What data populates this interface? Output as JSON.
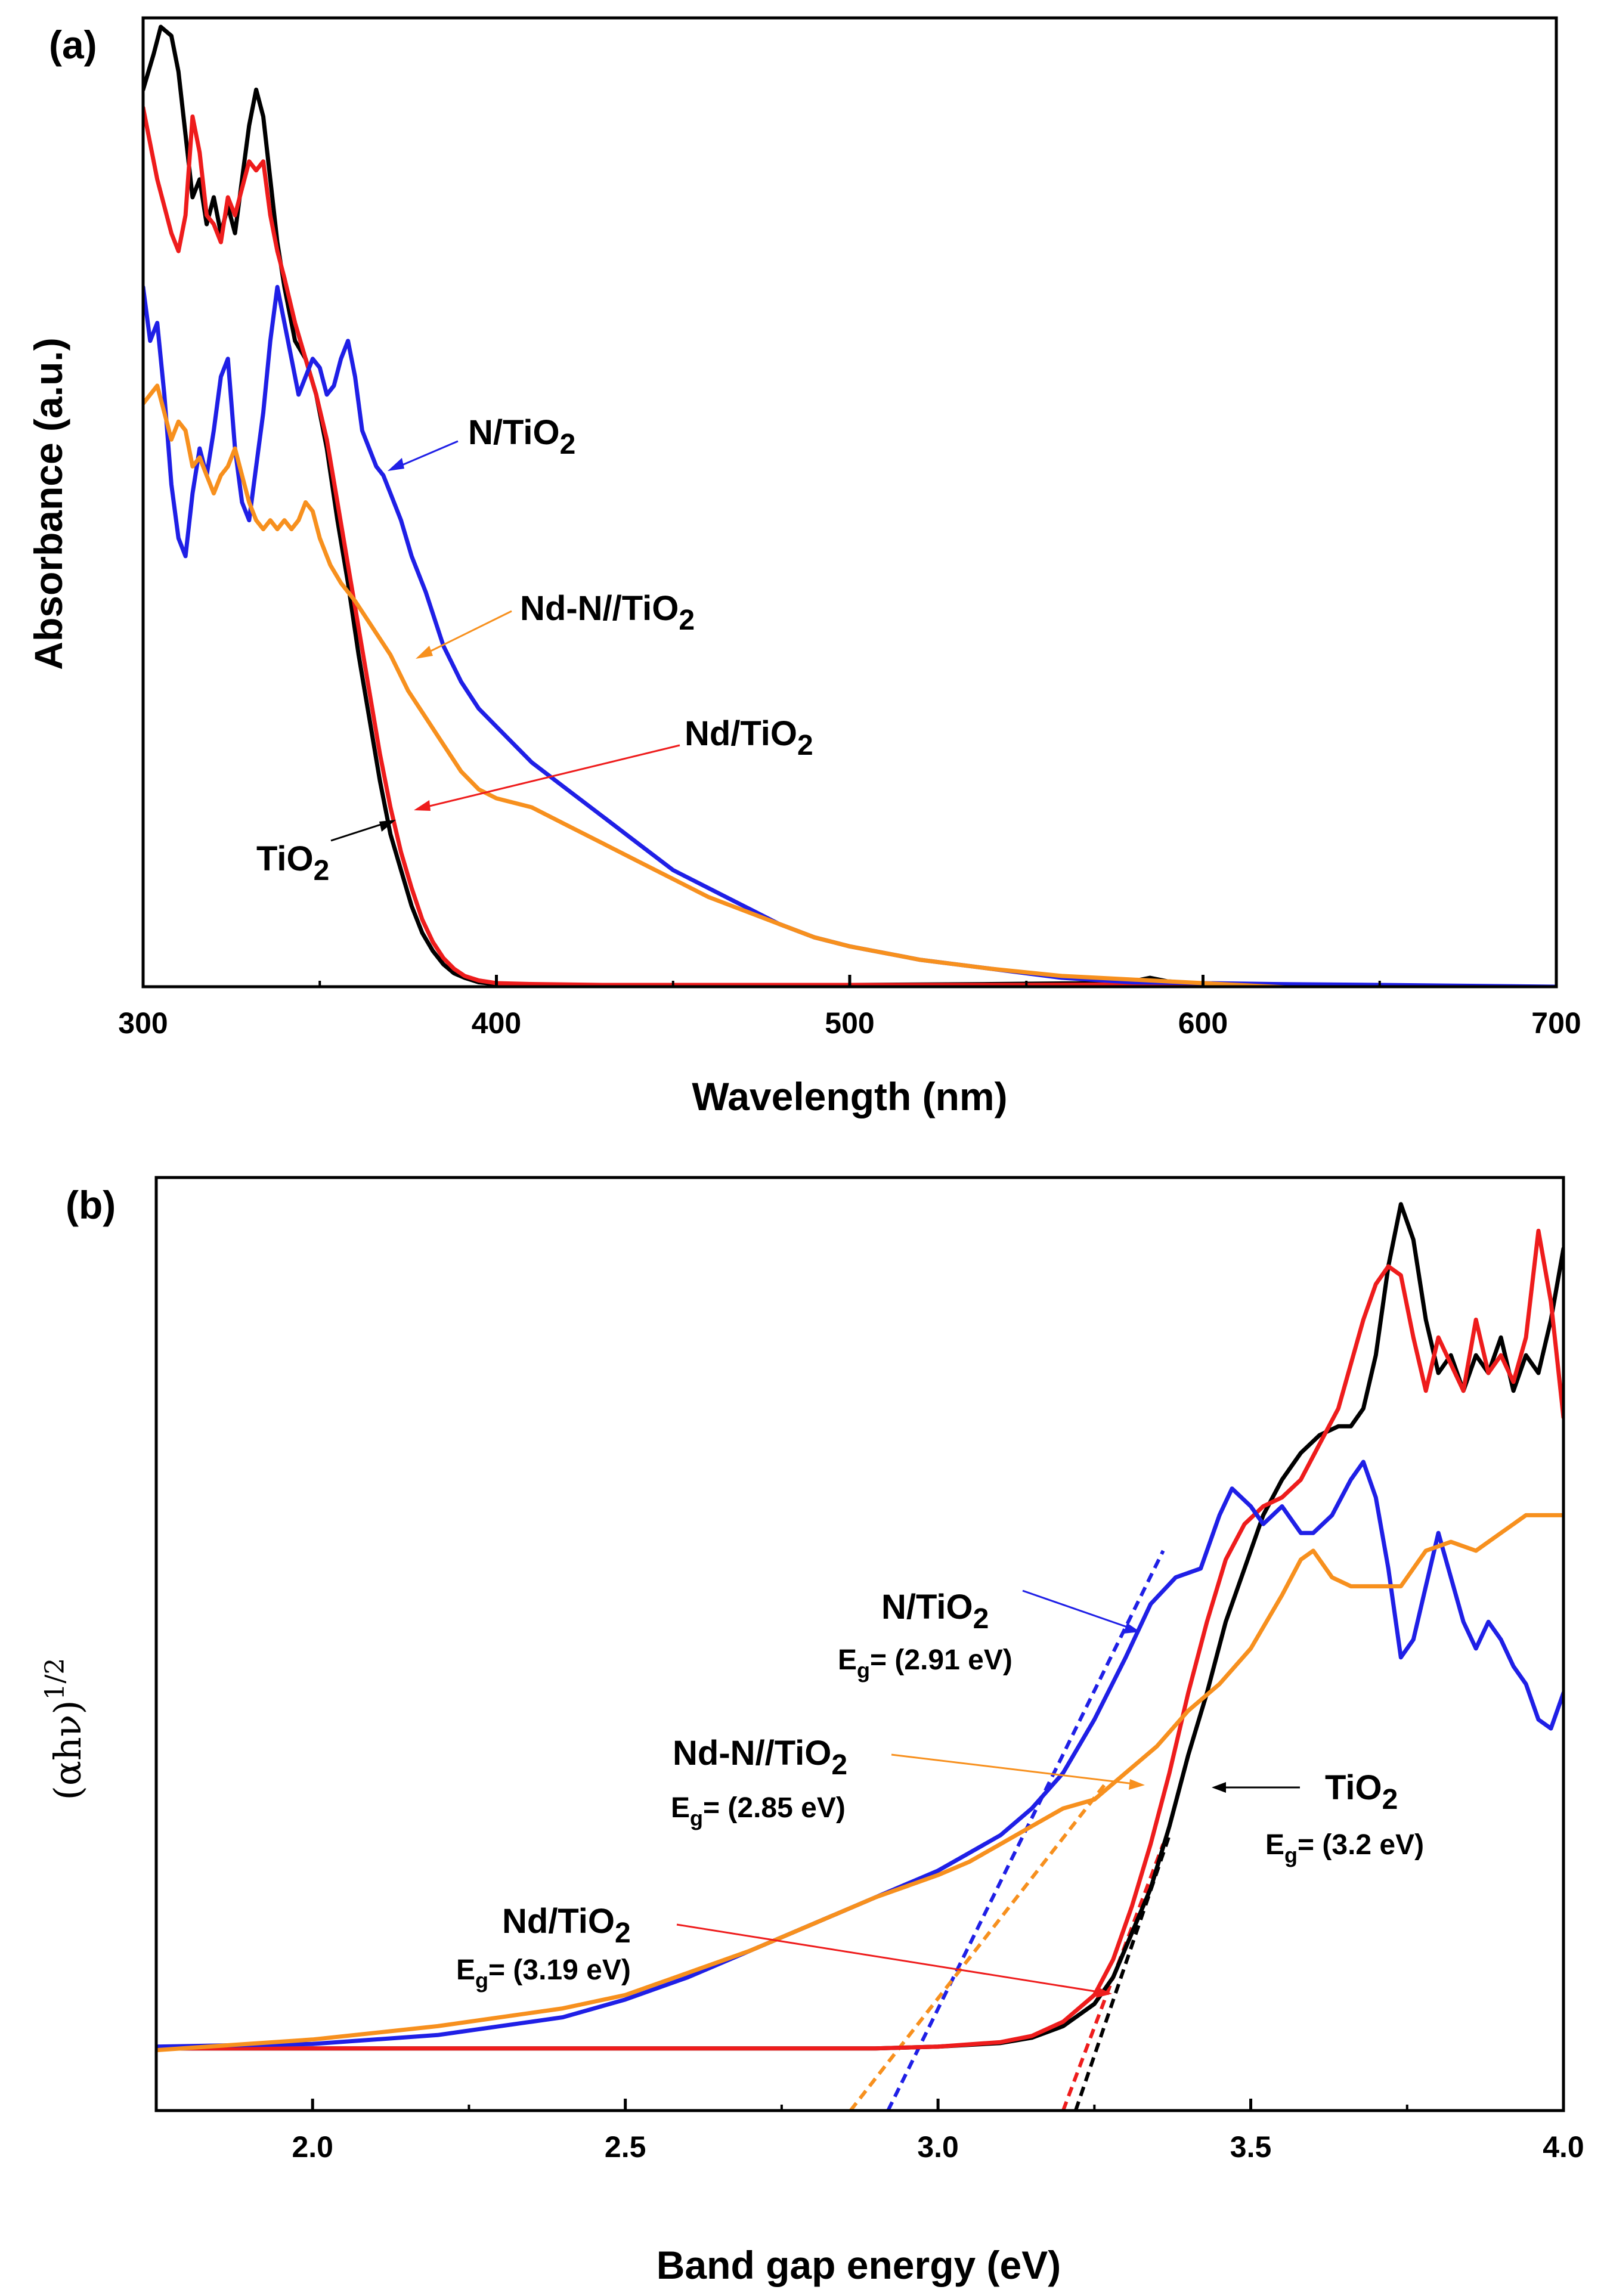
{
  "chart_data": [
    {
      "type": "line",
      "panel_label": "(a)",
      "xlabel": "Wavelength (nm)",
      "ylabel": "Absorbance (a.u.)",
      "xlim": [
        300,
        700
      ],
      "ylim": [
        0,
        1.08
      ],
      "xticks": [
        300,
        400,
        500,
        600,
        700
      ],
      "series": [
        {
          "name": "TiO2",
          "color": "#000000",
          "x": [
            300,
            303,
            305,
            308,
            310,
            312,
            314,
            316,
            318,
            320,
            322,
            324,
            326,
            328,
            330,
            332,
            334,
            336,
            338,
            340,
            343,
            346,
            349,
            352,
            355,
            358,
            361,
            364,
            367,
            370,
            373,
            376,
            379,
            382,
            385,
            388,
            391,
            395,
            400,
            410,
            430,
            460,
            500,
            540,
            570,
            580,
            585,
            590,
            600,
            620,
            650,
            700
          ],
          "y": [
            1.0,
            1.04,
            1.07,
            1.06,
            1.02,
            0.95,
            0.88,
            0.9,
            0.85,
            0.88,
            0.84,
            0.87,
            0.84,
            0.9,
            0.96,
            1.0,
            0.97,
            0.9,
            0.83,
            0.78,
            0.72,
            0.7,
            0.66,
            0.6,
            0.52,
            0.45,
            0.37,
            0.3,
            0.23,
            0.17,
            0.13,
            0.09,
            0.06,
            0.04,
            0.025,
            0.015,
            0.01,
            0.005,
            0.003,
            0.002,
            0.002,
            0.002,
            0.002,
            0.003,
            0.004,
            0.006,
            0.01,
            0.006,
            0.003,
            0.0,
            -0.005,
            -0.01
          ]
        },
        {
          "name": "Nd/TiO2",
          "color": "#ee1c1c",
          "x": [
            300,
            302,
            304,
            306,
            308,
            310,
            312,
            314,
            316,
            318,
            320,
            322,
            324,
            326,
            328,
            330,
            332,
            334,
            336,
            338,
            340,
            343,
            346,
            349,
            352,
            355,
            358,
            361,
            364,
            367,
            370,
            373,
            376,
            379,
            382,
            385,
            388,
            391,
            395,
            400,
            410,
            430,
            460,
            500,
            550,
            600,
            650,
            700
          ],
          "y": [
            0.98,
            0.94,
            0.9,
            0.87,
            0.84,
            0.82,
            0.86,
            0.97,
            0.93,
            0.86,
            0.85,
            0.83,
            0.88,
            0.86,
            0.89,
            0.92,
            0.91,
            0.92,
            0.86,
            0.82,
            0.79,
            0.74,
            0.7,
            0.66,
            0.61,
            0.54,
            0.47,
            0.4,
            0.33,
            0.26,
            0.2,
            0.15,
            0.11,
            0.075,
            0.05,
            0.032,
            0.02,
            0.012,
            0.007,
            0.004,
            0.003,
            0.002,
            0.002,
            0.002,
            0.002,
            0.003,
            0.0,
            -0.01
          ]
        },
        {
          "name": "N/TiO2",
          "color": "#1f1fe6",
          "x": [
            300,
            302,
            304,
            306,
            308,
            310,
            312,
            314,
            316,
            318,
            320,
            322,
            324,
            326,
            328,
            330,
            332,
            334,
            336,
            338,
            340,
            342,
            344,
            346,
            348,
            350,
            352,
            354,
            356,
            358,
            360,
            362,
            364,
            366,
            368,
            370,
            373,
            376,
            380,
            385,
            390,
            395,
            400,
            410,
            420,
            430,
            440,
            450,
            460,
            470,
            480,
            490,
            500,
            520,
            540,
            560,
            580,
            600,
            620,
            650,
            700
          ],
          "y": [
            0.78,
            0.72,
            0.74,
            0.66,
            0.56,
            0.5,
            0.48,
            0.55,
            0.6,
            0.57,
            0.62,
            0.68,
            0.7,
            0.6,
            0.54,
            0.52,
            0.58,
            0.64,
            0.72,
            0.78,
            0.74,
            0.7,
            0.66,
            0.68,
            0.7,
            0.69,
            0.66,
            0.67,
            0.7,
            0.72,
            0.68,
            0.62,
            0.6,
            0.58,
            0.57,
            0.55,
            0.52,
            0.48,
            0.44,
            0.38,
            0.34,
            0.31,
            0.29,
            0.25,
            0.22,
            0.19,
            0.16,
            0.13,
            0.11,
            0.09,
            0.07,
            0.055,
            0.045,
            0.03,
            0.02,
            0.01,
            0.005,
            0.004,
            0.003,
            0.002,
            0.0
          ]
        },
        {
          "name": "Nd-N//TiO2",
          "color": "#f7901e",
          "x": [
            300,
            304,
            306,
            308,
            310,
            312,
            314,
            316,
            318,
            320,
            322,
            324,
            326,
            328,
            330,
            332,
            334,
            336,
            338,
            340,
            342,
            344,
            346,
            348,
            350,
            353,
            356,
            360,
            365,
            370,
            375,
            380,
            385,
            390,
            395,
            400,
            410,
            420,
            430,
            440,
            450,
            460,
            470,
            480,
            490,
            500,
            520,
            540,
            560,
            580,
            600,
            630,
            660,
            700
          ],
          "y": [
            0.65,
            0.67,
            0.64,
            0.61,
            0.63,
            0.62,
            0.58,
            0.59,
            0.57,
            0.55,
            0.57,
            0.58,
            0.6,
            0.57,
            0.54,
            0.52,
            0.51,
            0.52,
            0.51,
            0.52,
            0.51,
            0.52,
            0.54,
            0.53,
            0.5,
            0.47,
            0.45,
            0.43,
            0.4,
            0.37,
            0.33,
            0.3,
            0.27,
            0.24,
            0.22,
            0.21,
            0.2,
            0.18,
            0.16,
            0.14,
            0.12,
            0.1,
            0.085,
            0.07,
            0.055,
            0.045,
            0.03,
            0.02,
            0.012,
            0.008,
            0.004,
            -0.002,
            -0.006,
            -0.012
          ]
        }
      ],
      "annotations": [
        {
          "text": "N/TiO",
          "sub": "2",
          "color": "#1f1fe6"
        },
        {
          "text": "Nd-N//TiO",
          "sub": "2",
          "color": "#f7901e"
        },
        {
          "text": "Nd/TiO",
          "sub": "2",
          "color": "#ee1c1c"
        },
        {
          "text": "TiO",
          "sub": "2",
          "color": "#000000"
        }
      ]
    },
    {
      "type": "line",
      "panel_label": "(b)",
      "xlabel": "Band gap energy (eV)",
      "ylabel": "(αhν)",
      "ylabel_sup": "1/2",
      "xlim": [
        1.75,
        4.0
      ],
      "ylim": [
        -0.05,
        1.0
      ],
      "xticks": [
        2.0,
        2.5,
        3.0,
        3.5,
        4.0
      ],
      "xtick_labels": [
        "2.0",
        "2.5",
        "3.0",
        "3.5",
        "4.0"
      ],
      "series": [
        {
          "name": "TiO2",
          "color": "#000000",
          "x": [
            1.75,
            2.0,
            2.5,
            2.9,
            3.0,
            3.1,
            3.15,
            3.2,
            3.25,
            3.28,
            3.31,
            3.34,
            3.37,
            3.4,
            3.43,
            3.46,
            3.49,
            3.52,
            3.55,
            3.58,
            3.61,
            3.64,
            3.66,
            3.68,
            3.7,
            3.72,
            3.74,
            3.76,
            3.78,
            3.8,
            3.82,
            3.84,
            3.86,
            3.88,
            3.9,
            3.92,
            3.94,
            3.96,
            3.98,
            4.0
          ],
          "y": [
            0.02,
            0.02,
            0.02,
            0.02,
            0.022,
            0.026,
            0.032,
            0.045,
            0.07,
            0.1,
            0.15,
            0.2,
            0.27,
            0.35,
            0.42,
            0.5,
            0.56,
            0.62,
            0.66,
            0.69,
            0.71,
            0.72,
            0.72,
            0.74,
            0.8,
            0.9,
            0.97,
            0.93,
            0.84,
            0.78,
            0.8,
            0.76,
            0.8,
            0.78,
            0.82,
            0.76,
            0.8,
            0.78,
            0.84,
            0.92
          ]
        },
        {
          "name": "Nd/TiO2",
          "color": "#ee1c1c",
          "x": [
            1.75,
            2.0,
            2.5,
            2.9,
            3.0,
            3.1,
            3.15,
            3.2,
            3.25,
            3.28,
            3.31,
            3.34,
            3.37,
            3.4,
            3.43,
            3.46,
            3.49,
            3.52,
            3.55,
            3.58,
            3.61,
            3.64,
            3.66,
            3.68,
            3.7,
            3.72,
            3.74,
            3.76,
            3.78,
            3.8,
            3.82,
            3.84,
            3.86,
            3.88,
            3.9,
            3.92,
            3.94,
            3.96,
            3.98,
            4.0
          ],
          "y": [
            0.02,
            0.02,
            0.02,
            0.02,
            0.022,
            0.027,
            0.034,
            0.05,
            0.08,
            0.12,
            0.18,
            0.25,
            0.33,
            0.42,
            0.5,
            0.57,
            0.61,
            0.63,
            0.64,
            0.66,
            0.7,
            0.74,
            0.79,
            0.84,
            0.88,
            0.9,
            0.89,
            0.82,
            0.76,
            0.82,
            0.79,
            0.76,
            0.84,
            0.78,
            0.8,
            0.77,
            0.82,
            0.94,
            0.86,
            0.73
          ]
        },
        {
          "name": "N/TiO2",
          "color": "#1f1fe6",
          "x": [
            1.75,
            2.0,
            2.2,
            2.4,
            2.5,
            2.6,
            2.7,
            2.8,
            2.9,
            3.0,
            3.05,
            3.1,
            3.15,
            3.2,
            3.25,
            3.3,
            3.34,
            3.38,
            3.42,
            3.45,
            3.47,
            3.5,
            3.52,
            3.55,
            3.58,
            3.6,
            3.63,
            3.66,
            3.68,
            3.7,
            3.72,
            3.74,
            3.76,
            3.78,
            3.8,
            3.82,
            3.84,
            3.86,
            3.88,
            3.9,
            3.92,
            3.94,
            3.96,
            3.98,
            4.0
          ],
          "y": [
            0.022,
            0.025,
            0.035,
            0.055,
            0.075,
            0.1,
            0.13,
            0.16,
            0.19,
            0.22,
            0.24,
            0.26,
            0.29,
            0.33,
            0.39,
            0.46,
            0.52,
            0.55,
            0.56,
            0.62,
            0.65,
            0.63,
            0.61,
            0.63,
            0.6,
            0.6,
            0.62,
            0.66,
            0.68,
            0.64,
            0.56,
            0.46,
            0.48,
            0.54,
            0.6,
            0.55,
            0.5,
            0.47,
            0.5,
            0.48,
            0.45,
            0.43,
            0.39,
            0.38,
            0.42
          ]
        },
        {
          "name": "Nd-N//TiO2",
          "color": "#f7901e",
          "x": [
            1.75,
            2.0,
            2.2,
            2.4,
            2.5,
            2.6,
            2.7,
            2.8,
            2.9,
            3.0,
            3.05,
            3.1,
            3.15,
            3.2,
            3.25,
            3.3,
            3.35,
            3.4,
            3.45,
            3.5,
            3.55,
            3.58,
            3.6,
            3.63,
            3.66,
            3.7,
            3.74,
            3.78,
            3.82,
            3.86,
            3.9,
            3.94,
            3.98,
            4.0
          ],
          "y": [
            0.018,
            0.03,
            0.045,
            0.065,
            0.08,
            0.105,
            0.13,
            0.16,
            0.19,
            0.215,
            0.23,
            0.25,
            0.27,
            0.29,
            0.3,
            0.33,
            0.36,
            0.4,
            0.43,
            0.47,
            0.53,
            0.57,
            0.58,
            0.55,
            0.54,
            0.54,
            0.54,
            0.58,
            0.59,
            0.58,
            0.6,
            0.62,
            0.62,
            0.62
          ]
        }
      ],
      "fits": [
        {
          "name": "N/TiO2",
          "color": "#1f1fe6",
          "x": [
            2.92,
            3.36
          ],
          "y": [
            -0.05,
            0.58
          ]
        },
        {
          "name": "Nd-N//TiO2",
          "color": "#f7901e",
          "x": [
            2.86,
            3.27
          ],
          "y": [
            -0.05,
            0.32
          ]
        },
        {
          "name": "Nd/TiO2",
          "color": "#ee1c1c",
          "x": [
            3.2,
            3.36
          ],
          "y": [
            -0.05,
            0.25
          ]
        },
        {
          "name": "TiO2",
          "color": "#000000",
          "x": [
            3.22,
            3.37
          ],
          "y": [
            -0.05,
            0.26
          ]
        }
      ],
      "annotations": [
        {
          "text": "N/TiO",
          "sub": "2",
          "eg": "= (2.91 eV)",
          "color": "#1f1fe6"
        },
        {
          "text": "Nd-N//TiO",
          "sub": "2",
          "eg": "= (2.85 eV)",
          "color": "#f7901e"
        },
        {
          "text": "Nd/TiO",
          "sub": "2",
          "eg": "= (3.19 eV)",
          "color": "#ee1c1c"
        },
        {
          "text": "TiO",
          "sub": "2",
          "eg": "= (3.2 eV)",
          "color": "#000000"
        }
      ],
      "eg_symbol": "E",
      "eg_sub": "g"
    }
  ]
}
